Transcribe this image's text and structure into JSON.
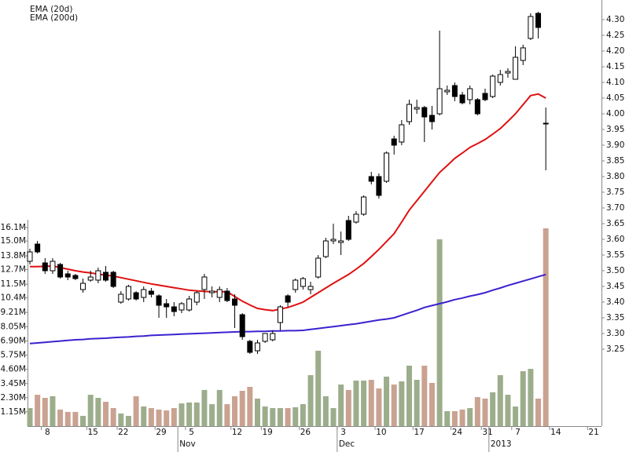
{
  "chart_data": {
    "type": "candlestick",
    "categories": [
      null,
      null,
      "8",
      null,
      null,
      null,
      null,
      null,
      "15",
      null,
      null,
      null,
      "22",
      null,
      null,
      null,
      null,
      "29",
      null,
      null,
      null,
      "5",
      null,
      null,
      null,
      null,
      null,
      "12",
      null,
      null,
      null,
      "19",
      null,
      null,
      null,
      null,
      "26",
      null,
      null,
      null,
      null,
      "3",
      null,
      null,
      null,
      null,
      "10",
      null,
      null,
      null,
      null,
      "17",
      null,
      null,
      null,
      null,
      "24",
      null,
      null,
      null,
      "31",
      null,
      null,
      null,
      "7",
      null,
      null,
      null,
      null,
      "14",
      null,
      null,
      null,
      null,
      "21",
      null
    ],
    "month_categories": [
      null,
      null,
      null,
      null,
      null,
      null,
      null,
      null,
      null,
      null,
      null,
      null,
      null,
      null,
      null,
      null,
      null,
      null,
      null,
      null,
      "Nov",
      null,
      null,
      null,
      null,
      null,
      null,
      null,
      null,
      null,
      null,
      null,
      null,
      null,
      null,
      null,
      null,
      null,
      null,
      null,
      null,
      "Dec",
      null,
      null,
      null,
      null,
      null,
      null,
      null,
      null,
      null,
      null,
      null,
      null,
      null,
      null,
      null,
      null,
      null,
      null,
      null,
      "2013",
      null,
      null,
      null,
      null,
      null,
      null,
      null,
      null,
      null,
      null,
      null,
      null,
      null,
      null
    ],
    "open": [
      3.53,
      3.585,
      3.525,
      3.5,
      3.52,
      3.49,
      3.485,
      3.44,
      3.47,
      3.47,
      3.495,
      3.495,
      3.4,
      3.41,
      3.43,
      3.415,
      3.435,
      3.42,
      3.395,
      3.385,
      3.375,
      3.375,
      3.4,
      3.44,
      3.43,
      3.415,
      3.435,
      3.41,
      3.36,
      3.275,
      3.245,
      3.275,
      3.28,
      3.335,
      3.42,
      3.44,
      3.45,
      3.44,
      3.48,
      3.545,
      3.595,
      3.59,
      3.66,
      3.655,
      3.68,
      3.8,
      3.8,
      3.785,
      3.92,
      3.91,
      3.975,
      4.015,
      4.02,
      3.995,
      4.0,
      4.07,
      4.09,
      4.06,
      4.045,
      4.045,
      4.065,
      4.055,
      4.1,
      4.13,
      4.11,
      4.17,
      4.24,
      4.32,
      3.97,
      null,
      null,
      null,
      null,
      null,
      null,
      null
    ],
    "high": [
      3.57,
      3.595,
      3.54,
      3.54,
      3.525,
      3.5,
      3.49,
      3.475,
      3.5,
      3.51,
      3.515,
      3.5,
      3.435,
      3.455,
      3.435,
      3.45,
      3.445,
      3.425,
      3.41,
      3.4,
      3.4,
      3.42,
      3.435,
      3.49,
      3.45,
      3.45,
      3.445,
      3.425,
      3.365,
      3.28,
      3.28,
      3.3,
      3.31,
      3.39,
      3.425,
      3.475,
      3.48,
      3.465,
      3.55,
      3.605,
      3.65,
      3.625,
      3.675,
      3.69,
      3.74,
      3.815,
      3.81,
      3.88,
      3.93,
      3.98,
      4.045,
      4.045,
      4.025,
      4.025,
      4.265,
      4.09,
      4.1,
      4.07,
      4.09,
      4.05,
      4.08,
      4.125,
      4.14,
      4.145,
      4.215,
      4.22,
      4.32,
      4.325,
      4.02,
      null,
      null,
      null,
      null,
      null,
      null,
      null
    ],
    "low": [
      3.52,
      3.555,
      3.49,
      3.49,
      3.475,
      3.47,
      3.47,
      3.43,
      3.465,
      3.46,
      3.465,
      3.445,
      3.395,
      3.405,
      3.405,
      3.4,
      3.415,
      3.35,
      3.35,
      3.355,
      3.365,
      3.37,
      3.39,
      3.41,
      3.415,
      3.4,
      3.4,
      3.3175,
      3.28,
      3.235,
      3.235,
      3.27,
      3.275,
      3.31,
      3.385,
      3.43,
      3.44,
      3.425,
      3.475,
      3.54,
      3.585,
      3.55,
      3.595,
      3.65,
      3.675,
      3.775,
      3.73,
      3.78,
      3.87,
      3.9,
      3.965,
      4.0,
      3.91,
      3.95,
      3.995,
      4.06,
      4.04,
      4.03,
      4.03,
      3.995,
      4.04,
      4.05,
      4.09,
      4.115,
      4.11,
      4.155,
      4.235,
      4.24,
      3.82,
      null,
      null,
      null,
      null,
      null,
      null,
      null
    ],
    "close": [
      3.56,
      3.56,
      3.5,
      3.53,
      3.48,
      3.48,
      3.475,
      3.46,
      3.48,
      3.5,
      3.47,
      3.45,
      3.425,
      3.45,
      3.41,
      3.44,
      3.425,
      3.39,
      3.385,
      3.37,
      3.395,
      3.41,
      3.43,
      3.48,
      3.435,
      3.44,
      3.405,
      3.39,
      3.29,
      3.24,
      3.27,
      3.3,
      3.3,
      3.385,
      3.4,
      3.47,
      3.475,
      3.45,
      3.54,
      3.595,
      3.6,
      3.595,
      3.6,
      3.68,
      3.735,
      3.785,
      3.74,
      3.875,
      3.9,
      3.965,
      4.03,
      4.02,
      3.99,
      3.975,
      4.08,
      4.075,
      4.055,
      4.035,
      4.08,
      4.0,
      4.045,
      4.12,
      4.125,
      4.135,
      4.18,
      4.21,
      4.31,
      4.275,
      3.97,
      null,
      null,
      null,
      null,
      null,
      null,
      null
    ],
    "volume": [
      1.46,
      2.54,
      2.29,
      2.42,
      1.34,
      1.15,
      1.15,
      0.83,
      2.54,
      2.29,
      1.97,
      1.46,
      1.02,
      0.83,
      2.42,
      1.59,
      1.46,
      1.34,
      1.27,
      1.46,
      1.84,
      1.91,
      1.91,
      2.93,
      1.78,
      2.93,
      1.78,
      2.42,
      2.86,
      3.18,
      2.23,
      1.59,
      1.46,
      1.46,
      1.46,
      1.53,
      1.78,
      4.13,
      6.11,
      2.42,
      1.46,
      3.37,
      2.93,
      3.69,
      3.69,
      3.75,
      3.05,
      4.01,
      3.37,
      3.63,
      4.9,
      3.75,
      4.9,
      3.5,
      15.14,
      1.21,
      1.21,
      1.34,
      1.46,
      2.35,
      2.23,
      2.74,
      4.13,
      2.54,
      1.59,
      4.45,
      4.64,
      2.23,
      16.03,
      null,
      null,
      null,
      null,
      null,
      null,
      null
    ],
    "up_color": "#9cad8c",
    "down_color": "#caa291",
    "series": [
      {
        "name": "EMA (20d)",
        "color": "#e01010",
        "values": [
          3.513,
          3.513,
          3.514,
          3.515,
          3.51,
          3.505,
          3.5,
          3.496,
          3.493,
          3.489,
          3.486,
          3.483,
          3.478,
          3.473,
          3.468,
          3.463,
          3.458,
          3.454,
          3.45,
          3.446,
          3.442,
          3.438,
          3.436,
          3.434,
          3.433,
          3.433,
          3.433,
          3.418,
          3.403,
          3.391,
          3.38,
          3.376,
          3.373,
          3.378,
          3.383,
          3.391,
          3.4,
          3.415,
          3.43,
          3.445,
          3.46,
          3.474,
          3.488,
          3.505,
          3.523,
          3.545,
          3.568,
          3.593,
          3.618,
          3.655,
          3.693,
          3.723,
          3.753,
          3.783,
          3.813,
          3.835,
          3.858,
          3.875,
          3.893,
          3.905,
          3.918,
          3.935,
          3.953,
          3.976,
          4.0,
          4.029,
          4.058,
          4.063,
          4.05,
          null,
          null,
          null,
          null,
          null,
          null,
          null
        ]
      },
      {
        "name": "EMA (200d)",
        "color": "#3a22d0",
        "values": [
          3.268,
          3.27,
          3.272,
          3.274,
          3.276,
          3.278,
          3.28,
          3.281,
          3.283,
          3.284,
          3.285,
          3.287,
          3.288,
          3.289,
          3.291,
          3.292,
          3.294,
          3.295,
          3.296,
          3.297,
          3.298,
          3.299,
          3.3,
          3.301,
          3.302,
          3.303,
          3.304,
          3.305,
          3.306,
          3.306,
          3.307,
          3.307,
          3.308,
          3.308,
          3.309,
          3.309,
          3.31,
          3.313,
          3.316,
          3.319,
          3.322,
          3.325,
          3.328,
          3.331,
          3.335,
          3.339,
          3.343,
          3.346,
          3.35,
          3.358,
          3.366,
          3.374,
          3.383,
          3.389,
          3.395,
          3.401,
          3.408,
          3.413,
          3.419,
          3.424,
          3.43,
          3.438,
          3.445,
          3.453,
          3.46,
          3.467,
          3.474,
          3.481,
          3.488,
          null,
          null,
          null,
          null,
          null,
          null,
          null
        ]
      }
    ],
    "ylim": [
      3.005,
      4.3625
    ],
    "yticks": [
      3.25,
      {
        "value": 3.3,
        "label": "3.30"
      },
      3.35,
      {
        "value": 3.4,
        "label": "3.40"
      },
      3.45,
      {
        "value": 3.5,
        "label": "3.50"
      },
      3.55,
      {
        "value": 3.6,
        "label": "3.60"
      },
      3.65,
      {
        "value": 3.7,
        "label": "3.70"
      },
      3.75,
      {
        "value": 3.8,
        "label": "3.80"
      },
      3.85,
      {
        "value": 3.9,
        "label": "3.90"
      },
      3.95,
      {
        "value": 4,
        "label": "4.00"
      },
      4.05,
      {
        "value": 4.1,
        "label": "4.10"
      },
      4.15,
      {
        "value": 4.2,
        "label": "4.20"
      },
      4.25,
      {
        "value": 4.3,
        "label": "4.30"
      }
    ],
    "y2lim": [
      0,
      34.54
    ],
    "y2ticks": [
      {
        "value": 1.15,
        "label": "1.15M"
      },
      {
        "value": 2.3,
        "label": "2.30M"
      },
      {
        "value": 3.45,
        "label": "3.45M"
      },
      {
        "value": 4.6,
        "label": "4.60M"
      },
      {
        "value": 5.75,
        "label": "5.75M"
      },
      {
        "value": 6.9,
        "label": "6.90M"
      },
      {
        "value": 8.05,
        "label": "8.05M"
      },
      {
        "value": 9.21,
        "label": "9.21M"
      },
      {
        "value": 10.4,
        "label": "10.4M"
      },
      {
        "value": 11.5,
        "label": "11.5M"
      },
      {
        "value": 12.7,
        "label": "12.7M"
      },
      {
        "value": 13.8,
        "label": "13.8M"
      },
      {
        "value": 15.0,
        "label": "15.0M"
      },
      {
        "value": 16.1,
        "label": "16.1M"
      }
    ]
  }
}
